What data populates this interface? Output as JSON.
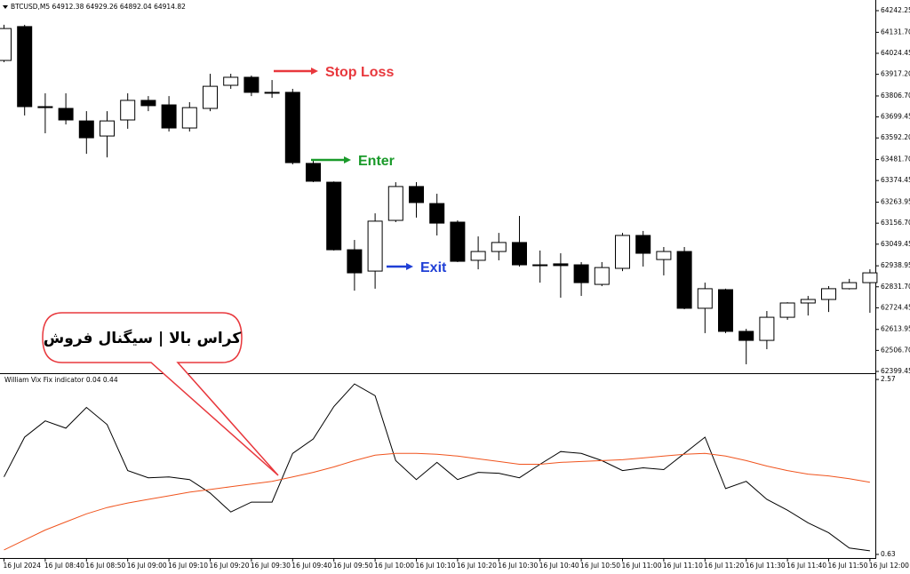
{
  "chart_data": [
    {
      "type": "candlestick",
      "title": "BTCUSD,M5  64912.38 64929.26 64892.04 64914.82",
      "categories": [
        "16 Jul 2024",
        null,
        "16 Jul 08:40",
        null,
        "16 Jul 08:50",
        null,
        "16 Jul 09:00",
        null,
        "16 Jul 09:10",
        null,
        "16 Jul 09:20",
        null,
        "16 Jul 09:30",
        null,
        "16 Jul 09:40",
        null,
        "16 Jul 09:50",
        null,
        "16 Jul 10:00",
        null,
        "16 Jul 10:10",
        null,
        "16 Jul 10:20",
        null,
        "16 Jul 10:30",
        null,
        "16 Jul 10:40",
        null,
        "16 Jul 10:50",
        null,
        "16 Jul 11:00",
        null,
        "16 Jul 11:10",
        null,
        "16 Jul 11:20",
        null,
        "16 Jul 11:30",
        null,
        "16 Jul 11:40",
        null,
        "16 Jul 11:50",
        null,
        "16 Jul 12:00"
      ],
      "open": [
        63988,
        64161,
        63752,
        63743,
        63679,
        63602,
        63684,
        63784,
        63761,
        63643,
        63743,
        63861,
        63902,
        63825,
        63825,
        63462,
        63366,
        63021,
        62912,
        63171,
        63344,
        63257,
        63162,
        62967,
        63012,
        63058,
        62944,
        62949,
        62944,
        62844,
        62926,
        63094,
        62971,
        63012,
        62722,
        62817,
        62604,
        62558,
        62676,
        62749,
        62767,
        62822,
        62853
      ],
      "high": [
        64170,
        64170,
        63820,
        63820,
        63729,
        63729,
        63820,
        63806,
        63806,
        63775,
        63920,
        63920,
        63911,
        63888,
        63843,
        63480,
        63370,
        63071,
        63207,
        63366,
        63366,
        63307,
        63171,
        63089,
        63107,
        63194,
        63017,
        63003,
        62958,
        62958,
        63107,
        63117,
        63035,
        63035,
        62853,
        62822,
        62617,
        62708,
        62753,
        62785,
        62835,
        62872,
        62921
      ],
      "low": [
        63979,
        63707,
        63616,
        63661,
        63511,
        63493,
        63639,
        63729,
        63625,
        63625,
        63729,
        63843,
        63806,
        63797,
        63457,
        63366,
        63017,
        62812,
        62822,
        63162,
        63185,
        63094,
        62958,
        62921,
        62967,
        62935,
        62853,
        62776,
        62785,
        62835,
        62912,
        62935,
        62890,
        62717,
        62595,
        62595,
        62436,
        62513,
        62663,
        62685,
        62703,
        62818,
        62699
      ],
      "close": [
        64151,
        63752,
        63747,
        63684,
        63593,
        63679,
        63784,
        63757,
        63643,
        63747,
        63856,
        63902,
        63825,
        63823,
        63466,
        63371,
        63021,
        62903,
        63167,
        63344,
        63262,
        63157,
        62962,
        63012,
        63058,
        62944,
        62942,
        62940,
        62853,
        62930,
        63094,
        63003,
        63012,
        62722,
        62822,
        62604,
        62558,
        62676,
        62749,
        62767,
        62822,
        62853,
        62903
      ],
      "up_color": "#ffffff",
      "down_color": "#000000",
      "ylim": [
        62390.4,
        64278.6
      ],
      "yticks": [
        64242.25,
        {
          "value": 64131.7,
          "label": "64131.70"
        },
        64024.45,
        {
          "value": 63917.2,
          "label": "63917.20"
        },
        {
          "value": 63806.7,
          "label": "63806.70"
        },
        63699.45,
        {
          "value": 63592.2,
          "label": "63592.20"
        },
        {
          "value": 63481.7,
          "label": "63481.70"
        },
        63374.45,
        63263.95,
        {
          "value": 63156.7,
          "label": "63156.70"
        },
        63049.45,
        62938.95,
        {
          "value": 62831.7,
          "label": "62831.70"
        },
        62724.45,
        62613.95,
        {
          "value": 62506.7,
          "label": "62506.70"
        },
        62399.45
      ],
      "annotations": [
        {
          "text": "Stop Loss",
          "color": "#e8383d"
        },
        {
          "text": "Enter",
          "color": "#1a9a2a"
        },
        {
          "text": "Exit",
          "color": "#1f3fd6"
        }
      ],
      "callout": "کراس بالا | سیگنال فروش"
    },
    {
      "type": "line",
      "title": "William Vix Fix indicator 0.04 0.44",
      "series": [
        {
          "color": "#000000",
          "values": [
            1.49,
            1.93,
            2.11,
            2.03,
            2.26,
            2.07,
            1.56,
            1.48,
            1.49,
            1.46,
            1.31,
            1.1,
            1.21,
            1.21,
            1.75,
            1.91,
            2.27,
            2.52,
            2.39,
            1.67,
            1.46,
            1.65,
            1.46,
            1.54,
            1.53,
            1.48,
            1.63,
            1.77,
            1.75,
            1.67,
            1.56,
            1.59,
            1.57,
            1.75,
            1.93,
            1.36,
            1.44,
            1.24,
            1.12,
            0.98,
            0.87,
            0.7,
            0.67
          ]
        },
        {
          "color": "#f0541e",
          "values": [
            0.68,
            0.79,
            0.9,
            0.99,
            1.08,
            1.15,
            1.2,
            1.24,
            1.28,
            1.32,
            1.35,
            1.38,
            1.41,
            1.44,
            1.49,
            1.54,
            1.6,
            1.67,
            1.73,
            1.75,
            1.75,
            1.74,
            1.72,
            1.69,
            1.66,
            1.63,
            1.63,
            1.65,
            1.66,
            1.67,
            1.68,
            1.7,
            1.72,
            1.74,
            1.75,
            1.72,
            1.67,
            1.61,
            1.56,
            1.52,
            1.5,
            1.47,
            1.43
          ]
        }
      ],
      "ylim": [
        0.59,
        2.61
      ],
      "yticks": [
        2.57,
        0.63
      ]
    }
  ]
}
